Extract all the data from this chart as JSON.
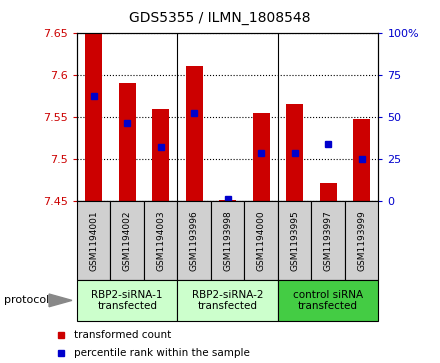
{
  "title": "GDS5355 / ILMN_1808548",
  "samples": [
    "GSM1194001",
    "GSM1194002",
    "GSM1194003",
    "GSM1193996",
    "GSM1193998",
    "GSM1194000",
    "GSM1193995",
    "GSM1193997",
    "GSM1193999"
  ],
  "red_values": [
    7.65,
    7.59,
    7.56,
    7.61,
    7.452,
    7.555,
    7.565,
    7.472,
    7.548
  ],
  "blue_values": [
    7.575,
    7.543,
    7.515,
    7.555,
    7.453,
    7.508,
    7.508,
    7.518,
    7.5
  ],
  "y_min": 7.45,
  "y_max": 7.65,
  "y_ticks": [
    7.45,
    7.5,
    7.55,
    7.6,
    7.65
  ],
  "y2_ticks": [
    0,
    25,
    50,
    75,
    100
  ],
  "y2_tick_labels": [
    "0",
    "25",
    "50",
    "75",
    "100%"
  ],
  "groups": [
    {
      "label": "RBP2-siRNA-1\ntransfected",
      "start": 0,
      "end": 3,
      "color": "#ccffcc"
    },
    {
      "label": "RBP2-siRNA-2\ntransfected",
      "start": 3,
      "end": 6,
      "color": "#ccffcc"
    },
    {
      "label": "control siRNA\ntransfected",
      "start": 6,
      "end": 9,
      "color": "#44cc44"
    }
  ],
  "bar_width": 0.5,
  "red_color": "#cc0000",
  "blue_color": "#0000cc",
  "protocol_label": "protocol",
  "legend_red": "transformed count",
  "legend_blue": "percentile rank within the sample",
  "background_gray": "#d0d0d0",
  "plot_bg": "#ffffff",
  "figsize": [
    4.4,
    3.63
  ],
  "dpi": 100
}
